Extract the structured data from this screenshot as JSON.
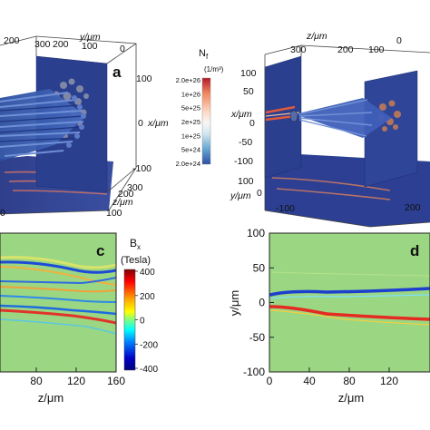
{
  "panels": {
    "a": {
      "label": "a",
      "axis_y_label": "y/μm",
      "axis_x_label": "x/μm",
      "axis_z_label": "z/μm",
      "top_ticks": [
        "200",
        "300",
        "200",
        "100",
        "0"
      ],
      "x_ticks": [
        "100",
        "0",
        "-100"
      ],
      "z_ticks": [
        "300",
        "200",
        "100"
      ],
      "left_ticks": [
        "0"
      ]
    },
    "b": {
      "axis_z_label": "z/μm",
      "axis_x_label": "x/μm",
      "axis_y_label": "y/μm",
      "top_ticks": [
        "300",
        "200",
        "100",
        "0"
      ],
      "x_ticks": [
        "100",
        "50",
        "0",
        "-50",
        "-100"
      ],
      "y_ticks": [
        "100",
        "0",
        "-100"
      ],
      "z_ticks": [
        "200"
      ]
    },
    "c": {
      "label": "c",
      "xlabel": "z/μm",
      "xticks": [
        "80",
        "120",
        "160"
      ]
    },
    "d": {
      "label": "d",
      "xlabel": "z/μm",
      "ylabel": "y/μm",
      "xticks": [
        "0",
        "40",
        "80",
        "120"
      ],
      "yticks": [
        "100",
        "50",
        "0",
        "-50",
        "-100"
      ]
    }
  },
  "colorbar_nf": {
    "title": "N",
    "title_sub": "f",
    "unit": "(1/m³)",
    "ticks": [
      "2.0e+26",
      "1e+26",
      "5e+25",
      "2e+25",
      "1e+25",
      "5e+24",
      "2.0e+24"
    ],
    "colors": [
      "#b2182b",
      "#ef8a62",
      "#fddbc7",
      "#f7f7f7",
      "#d1e5f0",
      "#67a9cf",
      "#2c4fa8"
    ]
  },
  "colorbar_bx": {
    "title": "B",
    "title_sub": "x",
    "unit": "(Tesla)",
    "ticks": [
      "400",
      "200",
      "0",
      "-200",
      "-400"
    ],
    "colors": [
      "#7f0000",
      "#ff0000",
      "#ffaa00",
      "#ffff00",
      "#7fff7f",
      "#00ffff",
      "#0080ff",
      "#0000c8",
      "#00007f"
    ]
  }
}
